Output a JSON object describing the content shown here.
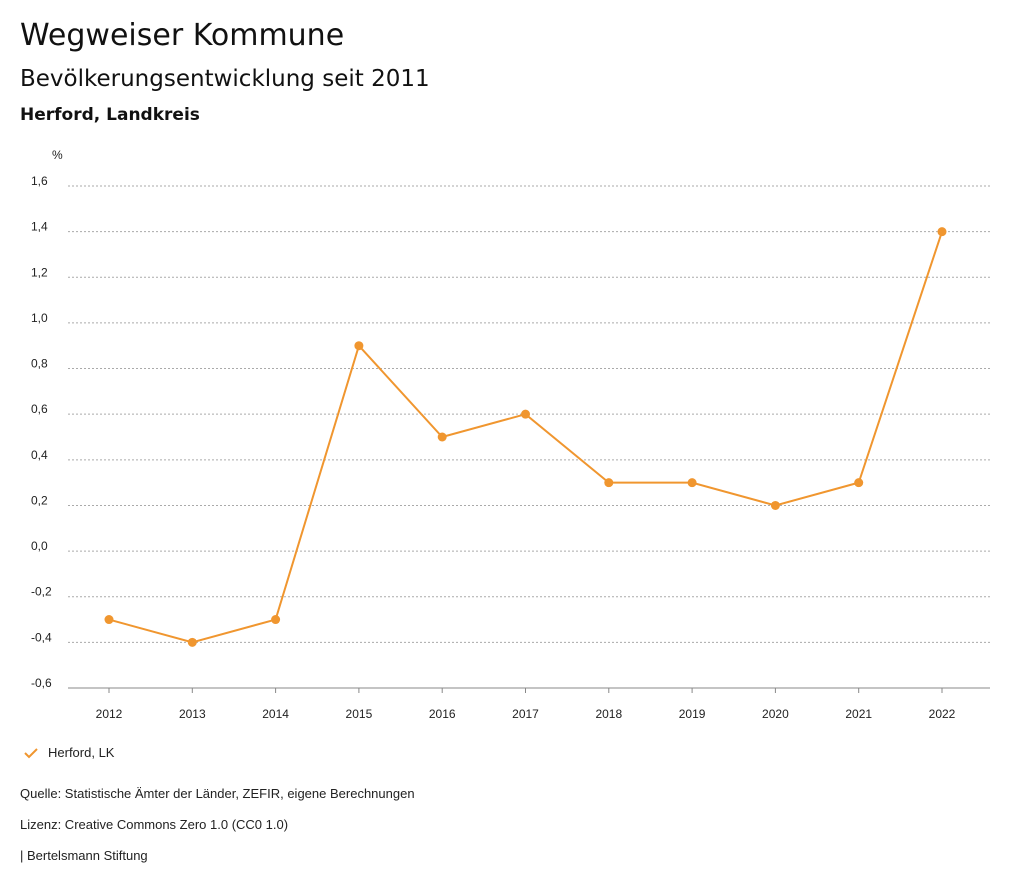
{
  "header": {
    "title": "Wegweiser Kommune",
    "subtitle": "Bevölkerungsentwicklung seit 2011",
    "region": "Herford, Landkreis"
  },
  "chart_data": {
    "type": "line",
    "ylabel": "%",
    "ylim": [
      -0.6,
      1.6
    ],
    "yticks": [
      "1,6",
      "1,4",
      "1,2",
      "1,0",
      "0,8",
      "0,6",
      "0,4",
      "0,2",
      "0,0",
      "-0,2",
      "-0,4",
      "-0,6"
    ],
    "ytick_values": [
      1.6,
      1.4,
      1.2,
      1.0,
      0.8,
      0.6,
      0.4,
      0.2,
      0.0,
      -0.2,
      -0.4,
      -0.6
    ],
    "categories": [
      "2012",
      "2013",
      "2014",
      "2015",
      "2016",
      "2017",
      "2018",
      "2019",
      "2020",
      "2021",
      "2022"
    ],
    "series": [
      {
        "name": "Herford, LK",
        "color": "#f0962f",
        "values": [
          -0.3,
          -0.4,
          -0.3,
          0.9,
          0.5,
          0.6,
          0.3,
          0.3,
          0.2,
          0.3,
          1.4
        ]
      }
    ],
    "grid": true,
    "legend": "bottom-left"
  },
  "footer": {
    "source": "Quelle: Statistische Ämter der Länder, ZEFIR, eigene Berechnungen",
    "license": "Lizenz: Creative Commons Zero 1.0 (CC0 1.0)",
    "publisher": "| Bertelsmann Stiftung"
  }
}
